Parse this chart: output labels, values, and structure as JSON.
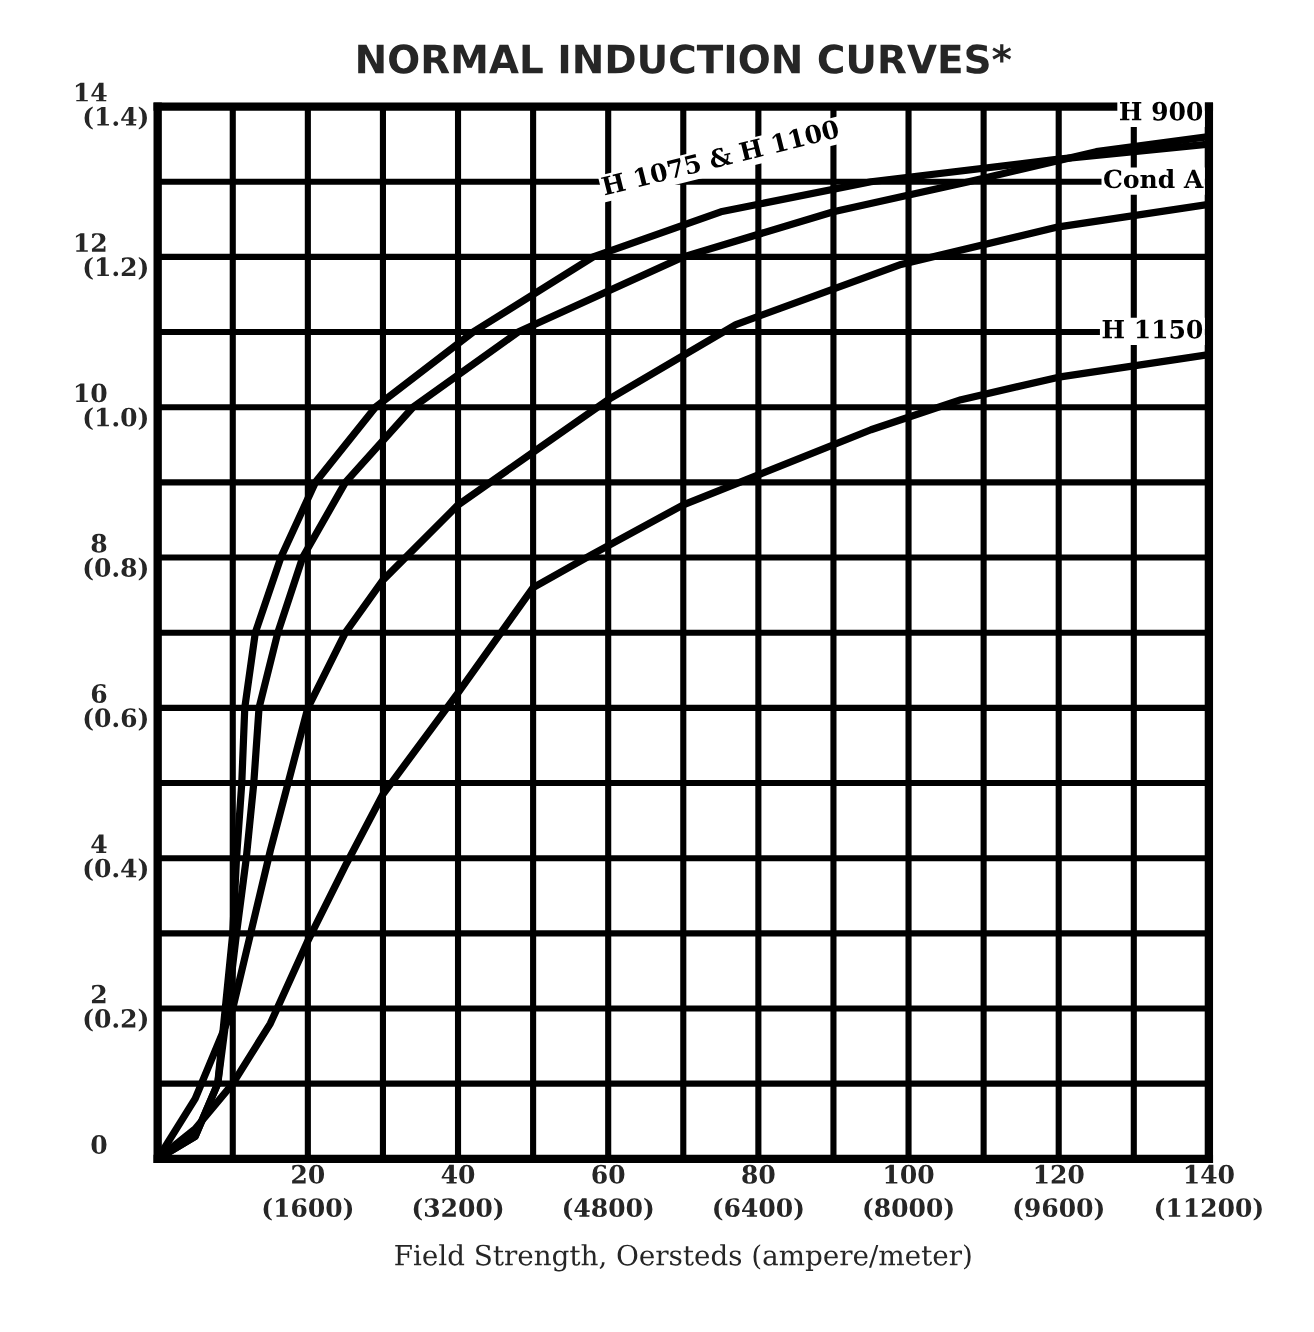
{
  "chart_data": {
    "type": "line",
    "title": "NORMAL INDUCTION CURVES*",
    "xlabel": "Field Strength, Oersteds (ampere/meter)",
    "xlim": [
      0,
      140
    ],
    "ylim": [
      0,
      14
    ],
    "xticks": [
      {
        "value": 0,
        "label": null
      },
      {
        "value": 10,
        "label": null
      },
      20,
      {
        "value": 30,
        "label": null
      },
      40,
      {
        "value": 50,
        "label": null
      },
      60,
      {
        "value": 70,
        "label": null
      },
      80,
      {
        "value": 90,
        "label": null
      },
      100,
      {
        "value": 110,
        "label": null
      },
      120,
      {
        "value": 130,
        "label": null
      },
      140
    ],
    "yticks": [
      0,
      {
        "value": 1,
        "label": null
      },
      2,
      {
        "value": 3,
        "label": null
      },
      4,
      {
        "value": 5,
        "label": null
      },
      6,
      {
        "value": 7,
        "label": null
      },
      8,
      {
        "value": 9,
        "label": null
      },
      10,
      {
        "value": 11,
        "label": null
      },
      12,
      {
        "value": 13,
        "label": null
      },
      14
    ],
    "x2lim": [
      0,
      11200
    ],
    "x2ticks": [
      {
        "value": 1600,
        "label": "(1600)"
      },
      {
        "value": 3200,
        "label": "(3200)"
      },
      {
        "value": 4800,
        "label": "(4800)"
      },
      {
        "value": 6400,
        "label": "(6400)"
      },
      {
        "value": 8000,
        "label": "(8000)"
      },
      {
        "value": 9600,
        "label": "(9600)"
      },
      {
        "value": 11200,
        "label": "(11200)"
      }
    ],
    "y2lim": [
      0,
      1.4
    ],
    "y2ticks": [
      {
        "value": 0.2,
        "label": "(0.2)"
      },
      {
        "value": 0.4,
        "label": "(0.4)"
      },
      {
        "value": 0.6,
        "label": "(0.6)"
      },
      {
        "value": 0.8,
        "label": "(0.8)"
      },
      {
        "value": 1.0,
        "label": "(1.0)"
      },
      {
        "value": 1.2,
        "label": "(1.2)"
      },
      {
        "value": 1.4,
        "label": "(1.4)"
      }
    ],
    "grid": true,
    "line_style": "solid",
    "marker": "none",
    "series": [
      {
        "name": "H 1075 & H 1100",
        "color": "#000000",
        "x": [
          0,
          5,
          8,
          9,
          10,
          10.5,
          11.2,
          11.6,
          13,
          16.4,
          21,
          29,
          42,
          58,
          75,
          95,
          120,
          140
        ],
        "values": [
          0,
          0.3,
          1,
          2,
          3,
          4,
          5,
          6,
          7,
          8,
          9,
          10,
          11,
          12,
          12.6,
          13,
          13.3,
          13.5
        ]
      },
      {
        "name": "H 900",
        "color": "#000000",
        "x": [
          0,
          5,
          8,
          9.3,
          10.5,
          11.8,
          12.8,
          13.5,
          16,
          19.3,
          25,
          34,
          48,
          70,
          90,
          108,
          125,
          140
        ],
        "values": [
          0,
          0.3,
          1,
          2,
          3,
          4,
          5,
          6,
          7,
          8,
          9,
          10,
          11,
          12,
          12.6,
          13,
          13.4,
          13.6
        ]
      },
      {
        "name": "Cond A",
        "color": "#000000",
        "x": [
          0,
          5,
          10,
          15,
          20,
          25,
          30,
          40,
          50,
          60,
          77,
          99,
          120,
          140
        ],
        "values": [
          0,
          0.8,
          2,
          4.1,
          6,
          7,
          7.7,
          8.7,
          9.4,
          10.1,
          11.1,
          11.9,
          12.4,
          12.7
        ]
      },
      {
        "name": "H 1150",
        "color": "#000000",
        "x": [
          0,
          5,
          10,
          15,
          20,
          25,
          30,
          40,
          50,
          58,
          70,
          80,
          95,
          107,
          120,
          140
        ],
        "values": [
          0,
          0.4,
          1,
          1.8,
          2.9,
          3.9,
          4.85,
          6.2,
          7.6,
          8.05,
          8.7,
          9.1,
          9.7,
          10.1,
          10.4,
          10.7
        ]
      }
    ]
  }
}
